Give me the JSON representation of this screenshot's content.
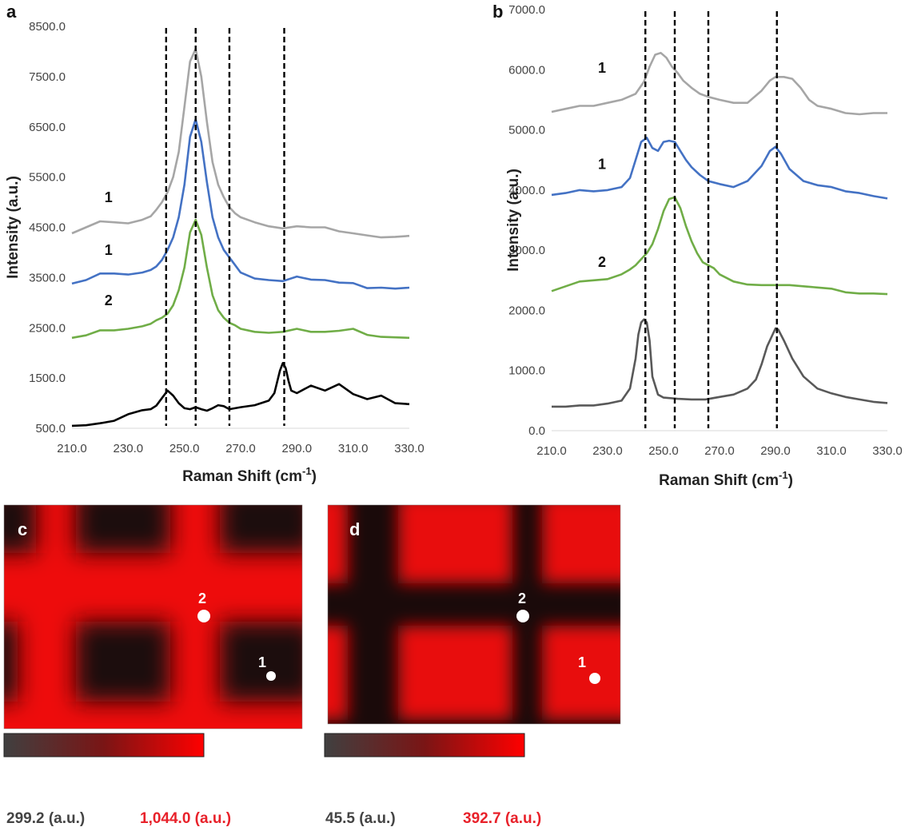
{
  "panels": {
    "a": "a",
    "b": "b",
    "c": "c",
    "d": "d"
  },
  "chart_data": [
    {
      "id": "a",
      "type": "line",
      "xlabel": "Raman Shift (cm",
      "xlabel_sup": "-1",
      "xlabel_end": ")",
      "ylabel": "Intensity (a.u.)",
      "xlim": [
        210,
        330
      ],
      "ylim": [
        500,
        8500
      ],
      "xticks": [
        "210.0",
        "230.0",
        "250.0",
        "270.0",
        "290.0",
        "310.0",
        "330.0"
      ],
      "yticks": [
        "500.0",
        "1500.0",
        "2500.0",
        "3500.0",
        "4500.0",
        "5500.0",
        "6500.0",
        "7500.0",
        "8500.0"
      ],
      "vlines": [
        243.5,
        254,
        266,
        285.5
      ],
      "series_labels": [
        {
          "text": "1",
          "x": 223,
          "y": 5000
        },
        {
          "text": "1",
          "x": 223,
          "y": 3950
        },
        {
          "text": "2",
          "x": 223,
          "y": 2950
        }
      ],
      "series": [
        {
          "color": "#a6a6a6",
          "x": [
            210,
            215,
            220,
            225,
            230,
            235,
            238,
            240,
            242,
            244,
            246,
            248,
            250,
            252,
            254,
            256,
            258,
            260,
            262,
            264,
            266,
            268,
            270,
            275,
            280,
            285,
            290,
            295,
            300,
            305,
            310,
            315,
            320,
            325,
            330
          ],
          "y": [
            4380,
            4500,
            4620,
            4600,
            4580,
            4650,
            4720,
            4850,
            5000,
            5200,
            5500,
            6000,
            6900,
            7800,
            8050,
            7500,
            6600,
            5800,
            5350,
            5100,
            4900,
            4780,
            4700,
            4600,
            4520,
            4480,
            4520,
            4500,
            4500,
            4420,
            4380,
            4340,
            4300,
            4310,
            4330
          ]
        },
        {
          "color": "#4472c4",
          "x": [
            210,
            215,
            220,
            225,
            230,
            235,
            238,
            240,
            242,
            244,
            246,
            248,
            250,
            252,
            254,
            256,
            258,
            260,
            262,
            264,
            266,
            268,
            270,
            275,
            280,
            285,
            290,
            295,
            300,
            305,
            310,
            315,
            320,
            325,
            330
          ],
          "y": [
            3380,
            3450,
            3580,
            3580,
            3560,
            3600,
            3650,
            3720,
            3850,
            4050,
            4300,
            4700,
            5350,
            6300,
            6650,
            6200,
            5400,
            4700,
            4300,
            4050,
            3900,
            3750,
            3600,
            3480,
            3450,
            3430,
            3520,
            3460,
            3450,
            3400,
            3390,
            3290,
            3300,
            3280,
            3300
          ]
        },
        {
          "color": "#70ad47",
          "x": [
            210,
            215,
            220,
            225,
            230,
            235,
            238,
            240,
            242,
            244,
            246,
            248,
            250,
            252,
            254,
            256,
            258,
            260,
            262,
            264,
            266,
            268,
            270,
            275,
            280,
            285,
            290,
            295,
            300,
            305,
            310,
            315,
            320,
            325,
            330
          ],
          "y": [
            2300,
            2350,
            2450,
            2450,
            2480,
            2530,
            2580,
            2650,
            2700,
            2780,
            2950,
            3250,
            3700,
            4400,
            4650,
            4350,
            3700,
            3150,
            2850,
            2700,
            2600,
            2550,
            2480,
            2420,
            2400,
            2420,
            2480,
            2420,
            2420,
            2440,
            2480,
            2360,
            2320,
            2310,
            2300
          ]
        },
        {
          "color": "#000000",
          "x": [
            210,
            215,
            220,
            225,
            230,
            235,
            238,
            240,
            242,
            244,
            246,
            248,
            250,
            252,
            254,
            256,
            258,
            260,
            262,
            264,
            266,
            268,
            270,
            275,
            280,
            282,
            284,
            285,
            286,
            287,
            288,
            290,
            295,
            300,
            305,
            310,
            315,
            320,
            325,
            330
          ],
          "y": [
            550,
            560,
            600,
            650,
            780,
            860,
            880,
            950,
            1100,
            1250,
            1150,
            1000,
            900,
            880,
            920,
            880,
            850,
            900,
            960,
            940,
            880,
            900,
            920,
            960,
            1050,
            1200,
            1650,
            1800,
            1700,
            1450,
            1250,
            1200,
            1350,
            1250,
            1380,
            1180,
            1080,
            1150,
            1000,
            980
          ]
        }
      ]
    },
    {
      "id": "b",
      "type": "line",
      "xlabel": "Raman Shift (cm",
      "xlabel_sup": "-1",
      "xlabel_end": ")",
      "ylabel": "Intensity (a.u.)",
      "xlim": [
        210,
        330
      ],
      "ylim": [
        0,
        7000
      ],
      "xticks": [
        "210.0",
        "230.0",
        "250.0",
        "270.0",
        "290.0",
        "310.0",
        "330.0"
      ],
      "yticks": [
        "0.0",
        "1000.0",
        "2000.0",
        "3000.0",
        "4000.0",
        "5000.0",
        "6000.0",
        "7000.0"
      ],
      "vlines": [
        243.5,
        254,
        266,
        290.5
      ],
      "series_labels": [
        {
          "text": "1",
          "x": 228,
          "y": 5950
        },
        {
          "text": "1",
          "x": 228,
          "y": 4350
        },
        {
          "text": "2",
          "x": 228,
          "y": 2720
        }
      ],
      "series": [
        {
          "color": "#a6a6a6",
          "x": [
            210,
            215,
            220,
            225,
            230,
            235,
            240,
            243,
            245,
            247,
            249,
            251,
            253,
            255,
            257,
            260,
            263,
            266,
            270,
            275,
            280,
            285,
            288,
            290,
            293,
            296,
            299,
            302,
            305,
            310,
            315,
            320,
            325,
            330
          ],
          "y": [
            5300,
            5350,
            5400,
            5400,
            5450,
            5500,
            5600,
            5800,
            6050,
            6250,
            6280,
            6200,
            6050,
            5950,
            5820,
            5700,
            5600,
            5550,
            5500,
            5450,
            5450,
            5650,
            5820,
            5880,
            5880,
            5850,
            5700,
            5500,
            5400,
            5350,
            5280,
            5260,
            5280,
            5280
          ]
        },
        {
          "color": "#4472c4",
          "x": [
            210,
            215,
            220,
            225,
            230,
            235,
            238,
            240,
            242,
            244,
            246,
            248,
            250,
            252,
            254,
            256,
            258,
            260,
            263,
            266,
            270,
            275,
            280,
            285,
            288,
            290,
            292,
            295,
            300,
            305,
            310,
            315,
            320,
            325,
            330
          ],
          "y": [
            3920,
            3950,
            4000,
            3980,
            4000,
            4050,
            4200,
            4500,
            4800,
            4870,
            4700,
            4650,
            4800,
            4820,
            4800,
            4650,
            4500,
            4380,
            4250,
            4150,
            4100,
            4050,
            4150,
            4400,
            4650,
            4720,
            4600,
            4350,
            4150,
            4080,
            4050,
            3980,
            3950,
            3900,
            3860
          ]
        },
        {
          "color": "#70ad47",
          "x": [
            210,
            215,
            220,
            225,
            230,
            235,
            238,
            240,
            242,
            244,
            246,
            248,
            250,
            252,
            254,
            256,
            258,
            260,
            262,
            264,
            266,
            268,
            270,
            275,
            280,
            285,
            290,
            295,
            300,
            305,
            310,
            315,
            320,
            325,
            330
          ],
          "y": [
            2320,
            2400,
            2480,
            2500,
            2520,
            2600,
            2680,
            2750,
            2850,
            2950,
            3100,
            3350,
            3650,
            3850,
            3880,
            3700,
            3400,
            3150,
            2950,
            2800,
            2750,
            2700,
            2600,
            2480,
            2430,
            2420,
            2420,
            2420,
            2400,
            2380,
            2360,
            2300,
            2280,
            2280,
            2270
          ]
        },
        {
          "color": "#595959",
          "x": [
            210,
            215,
            220,
            225,
            230,
            235,
            238,
            240,
            241,
            242,
            243,
            244,
            245,
            246,
            248,
            250,
            255,
            260,
            265,
            270,
            275,
            280,
            283,
            285,
            287,
            289,
            290,
            291,
            293,
            296,
            300,
            305,
            310,
            315,
            320,
            325,
            330
          ],
          "y": [
            400,
            400,
            420,
            420,
            450,
            500,
            700,
            1200,
            1600,
            1800,
            1850,
            1800,
            1500,
            900,
            600,
            550,
            530,
            520,
            520,
            560,
            600,
            700,
            850,
            1100,
            1400,
            1600,
            1700,
            1680,
            1500,
            1200,
            900,
            700,
            620,
            560,
            520,
            480,
            460
          ]
        }
      ]
    }
  ],
  "maps": {
    "c": {
      "points": [
        {
          "label": "2"
        },
        {
          "label": "1"
        }
      ],
      "colorbar": {
        "low": "299.2 (a.u.)",
        "high": "1,044.0 (a.u.)",
        "low_color": "#404040",
        "high_color": "#ff0000"
      }
    },
    "d": {
      "points": [
        {
          "label": "2"
        },
        {
          "label": "1"
        }
      ],
      "colorbar": {
        "low": "45.5 (a.u.)",
        "high": "392.7 (a.u.)",
        "low_color": "#404040",
        "high_color": "#ff0000"
      }
    }
  },
  "colors": {
    "label_low": "#444444",
    "label_high": "#e8212a",
    "map_red": "#ee0000",
    "map_dark": "#1a0d0d"
  }
}
